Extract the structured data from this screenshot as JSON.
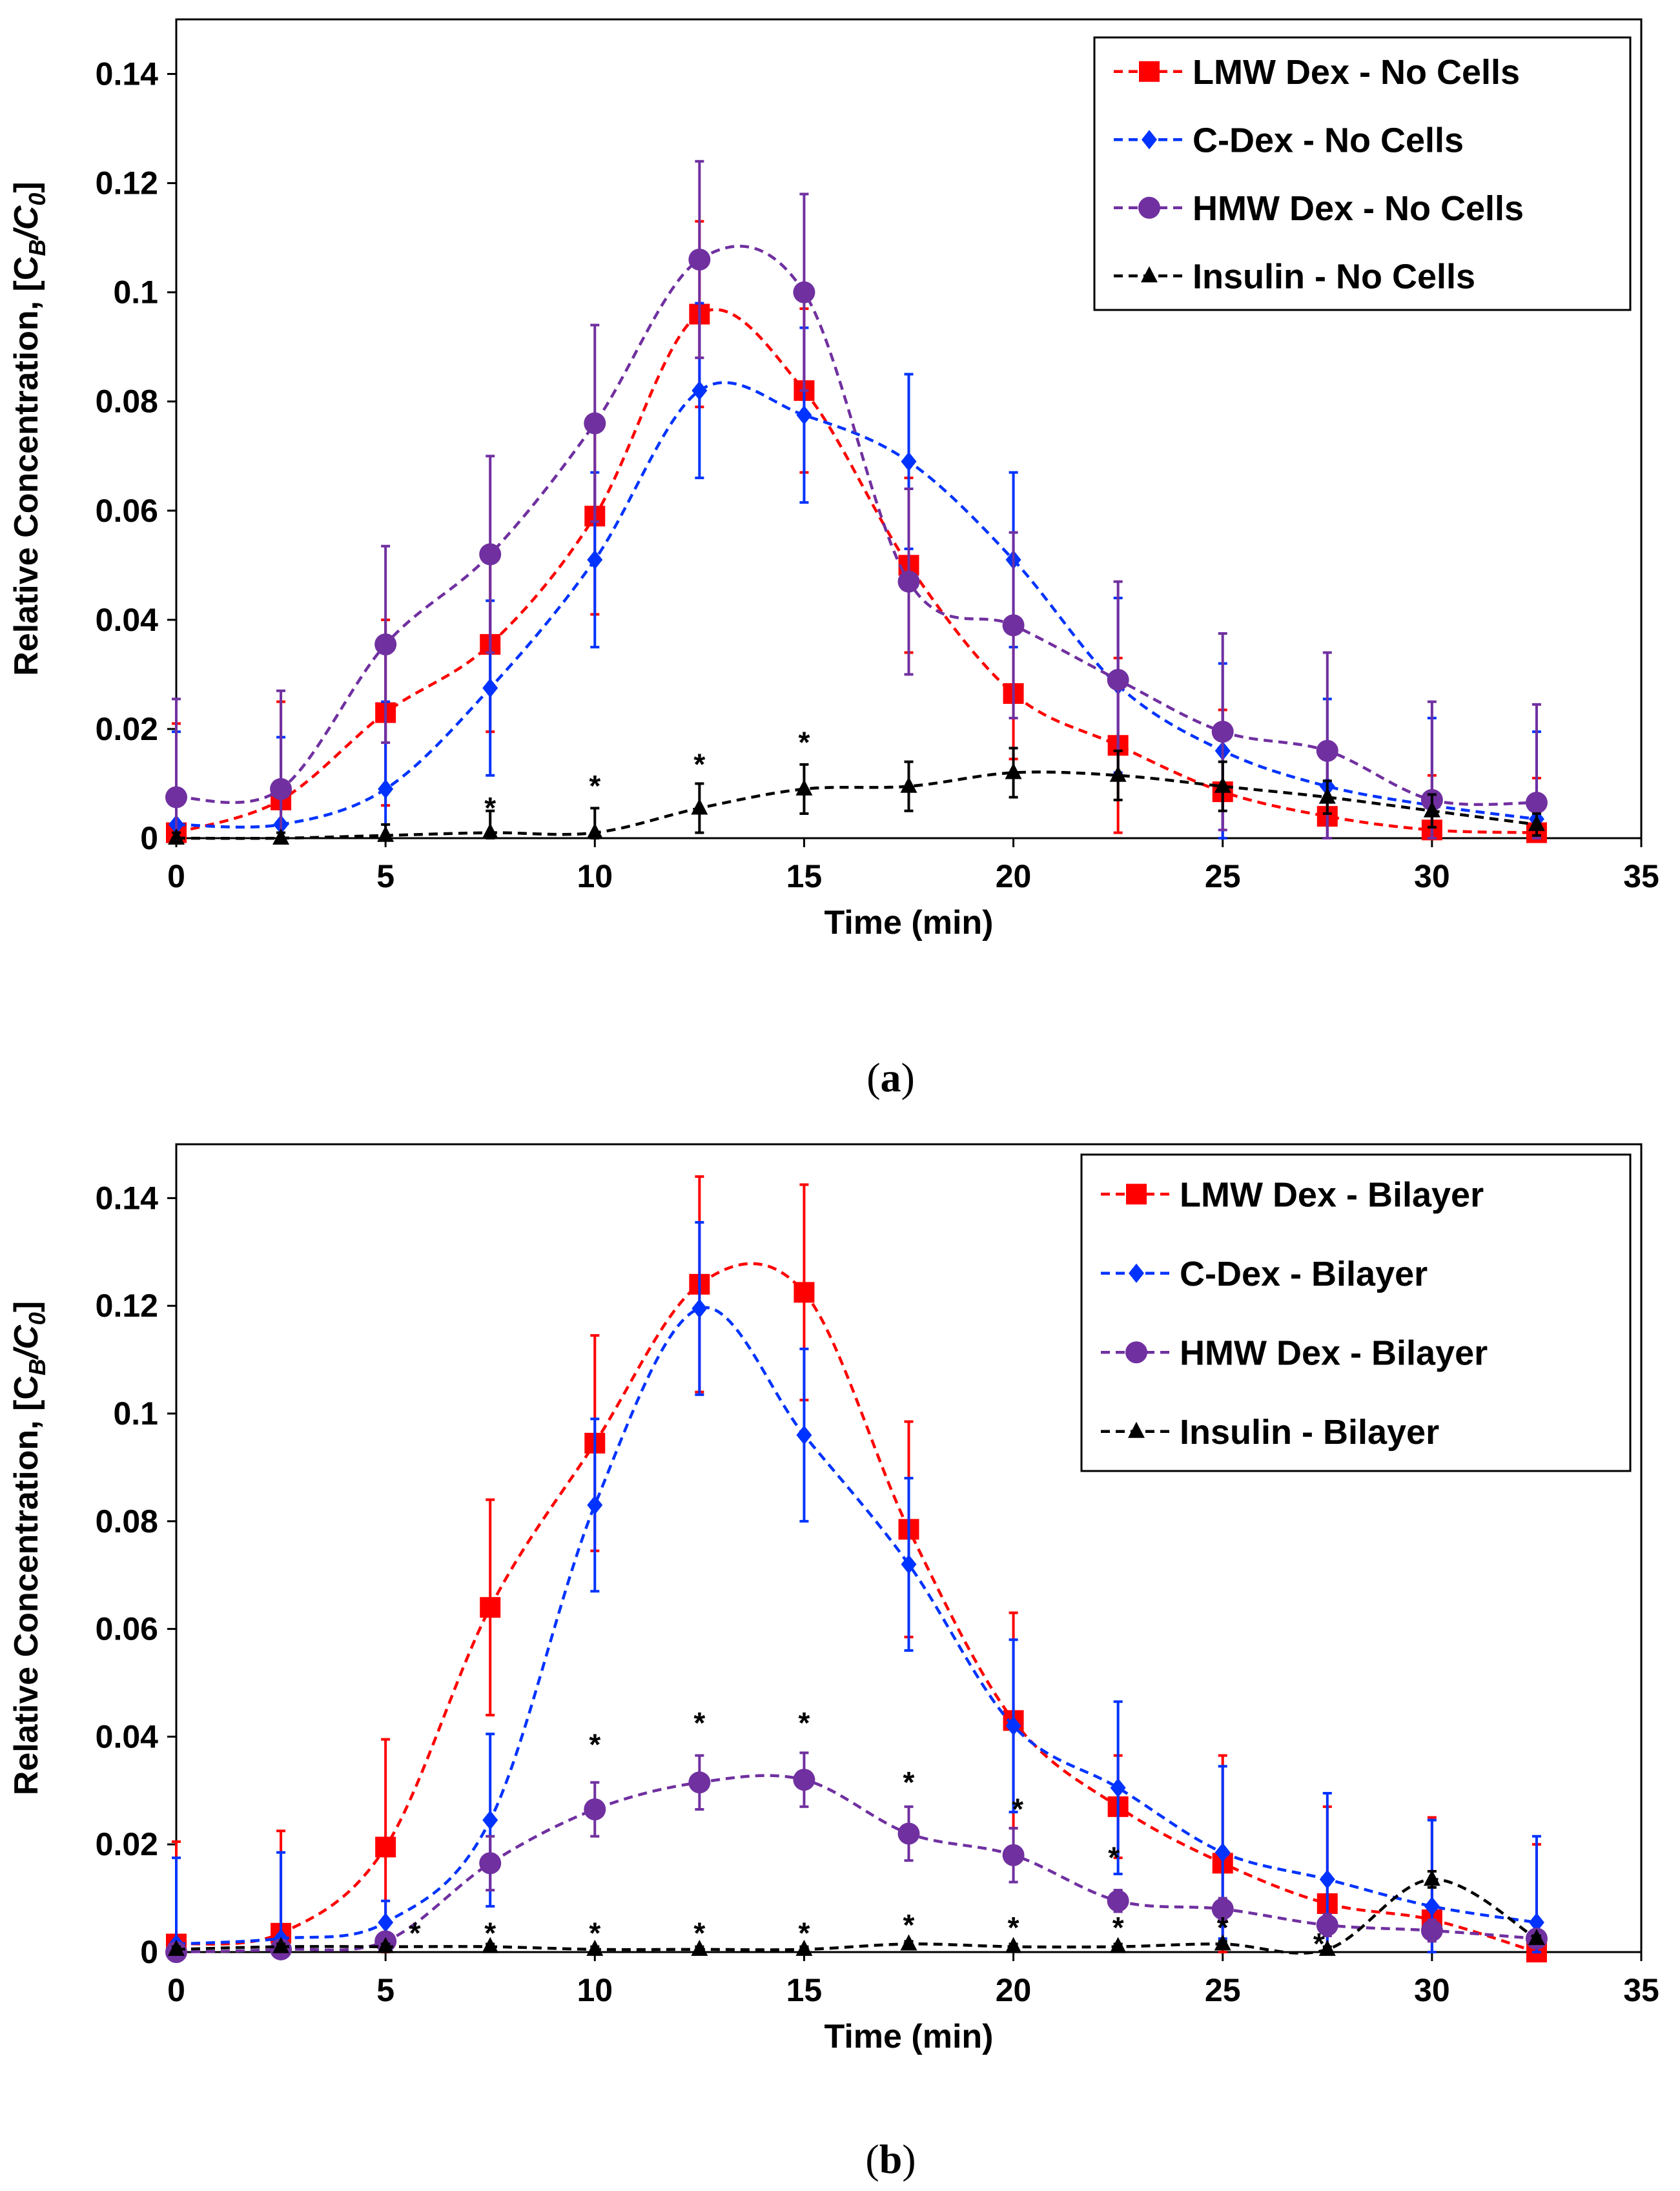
{
  "chart_data": [
    {
      "type": "line",
      "panel_caption": "(a)",
      "panel_caption_letter": "a",
      "xlabel": "Time (min)",
      "ylabel": "Relative Concentration, [C",
      "ylabel_sub_b": "B",
      "ylabel_slash": "/C",
      "ylabel_sub_0": "0",
      "ylabel_close": "]",
      "xlim": [
        0,
        35
      ],
      "ylim": [
        0,
        0.15
      ],
      "xticks": [
        "0",
        "5",
        "10",
        "15",
        "20",
        "25",
        "30",
        "35"
      ],
      "yticks": [
        "0",
        "0.02",
        "0.04",
        "0.06",
        "0.08",
        "0.1",
        "0.12",
        "0.14"
      ],
      "x": [
        0,
        2.5,
        5,
        7.5,
        10,
        12.5,
        15,
        17.5,
        20,
        22.5,
        25,
        27.5,
        30,
        32.5
      ],
      "series": [
        {
          "name": "LMW Dex - No Cells",
          "color": "#ff0000",
          "marker": "square",
          "values": [
            0.001,
            0.007,
            0.023,
            0.0355,
            0.059,
            0.096,
            0.082,
            0.05,
            0.0265,
            0.017,
            0.0085,
            0.004,
            0.0015,
            0.001
          ],
          "errors": [
            0.02,
            0.018,
            0.017,
            0.016,
            0.018,
            0.017,
            0.015,
            0.016,
            0.012,
            0.016,
            0.015,
            0.012,
            0.01,
            0.01
          ]
        },
        {
          "name": "C-Dex - No Cells",
          "color": "#0033ff",
          "marker": "diamond",
          "values": [
            0.0025,
            0.0025,
            0.009,
            0.0275,
            0.051,
            0.082,
            0.0775,
            0.069,
            0.051,
            0.028,
            0.016,
            0.0095,
            0.006,
            0.0035
          ],
          "errors": [
            0.017,
            0.016,
            0.016,
            0.016,
            0.016,
            0.016,
            0.016,
            0.016,
            0.016,
            0.016,
            0.016,
            0.016,
            0.016,
            0.016
          ]
        },
        {
          "name": "HMW Dex - No Cells",
          "color": "#7030a0",
          "marker": "circle",
          "values": [
            0.0075,
            0.009,
            0.0355,
            0.052,
            0.076,
            0.106,
            0.1,
            0.047,
            0.039,
            0.029,
            0.0195,
            0.016,
            0.007,
            0.0065
          ],
          "errors": [
            0.018,
            0.018,
            0.018,
            0.018,
            0.018,
            0.018,
            0.018,
            0.017,
            0.017,
            0.018,
            0.018,
            0.018,
            0.018,
            0.018
          ]
        },
        {
          "name": "Insulin - No Cells",
          "color": "#000000",
          "marker": "triangle",
          "values": [
            0,
            0,
            0.0005,
            0.001,
            0.001,
            0.0055,
            0.009,
            0.0095,
            0.012,
            0.0115,
            0.0095,
            0.0075,
            0.005,
            0.0025
          ],
          "errors": [
            0.001,
            0.001,
            0.002,
            0.004,
            0.0045,
            0.0045,
            0.0045,
            0.0045,
            0.0045,
            0.0045,
            0.0045,
            0.003,
            0.003,
            0.002
          ]
        }
      ],
      "annotations": [
        {
          "text": "*",
          "x": 7.5,
          "y": 0.0065
        },
        {
          "text": "*",
          "x": 10,
          "y": 0.0105
        },
        {
          "text": "*",
          "x": 12.5,
          "y": 0.0145
        },
        {
          "text": "*",
          "x": 15,
          "y": 0.0185
        }
      ],
      "legend_position": "top-right"
    },
    {
      "type": "line",
      "panel_caption": "(b)",
      "panel_caption_letter": "b",
      "xlabel": "Time (min)",
      "ylabel": "Relative Concentration, [C",
      "ylabel_sub_b": "B",
      "ylabel_slash": "/C",
      "ylabel_sub_0": "0",
      "ylabel_close": "]",
      "xlim": [
        0,
        35
      ],
      "ylim": [
        0,
        0.15
      ],
      "xticks": [
        "0",
        "5",
        "10",
        "15",
        "20",
        "25",
        "30",
        "35"
      ],
      "yticks": [
        "0",
        "0.02",
        "0.04",
        "0.06",
        "0.08",
        "0.1",
        "0.12",
        "0.14"
      ],
      "x": [
        0,
        2.5,
        5,
        7.5,
        10,
        12.5,
        15,
        17.5,
        20,
        22.5,
        25,
        27.5,
        30,
        32.5
      ],
      "series": [
        {
          "name": "LMW Dex - Bilayer",
          "color": "#ff0000",
          "marker": "square",
          "values": [
            0.0015,
            0.0035,
            0.0195,
            0.064,
            0.0945,
            0.124,
            0.1225,
            0.0785,
            0.043,
            0.027,
            0.0165,
            0.009,
            0.006,
            0
          ],
          "errors": [
            0.019,
            0.019,
            0.02,
            0.02,
            0.02,
            0.02,
            0.02,
            0.02,
            0.02,
            0.0095,
            0.02,
            0.018,
            0.019,
            0.02
          ]
        },
        {
          "name": "C-Dex - Bilayer",
          "color": "#0033ff",
          "marker": "diamond",
          "values": [
            0.0015,
            0.0025,
            0.0055,
            0.0245,
            0.083,
            0.1195,
            0.096,
            0.072,
            0.042,
            0.0305,
            0.0185,
            0.0135,
            0.0085,
            0.0055
          ],
          "errors": [
            0.016,
            0.016,
            0.004,
            0.016,
            0.016,
            0.016,
            0.016,
            0.016,
            0.016,
            0.016,
            0.016,
            0.016,
            0.016,
            0.016
          ]
        },
        {
          "name": "HMW Dex - Bilayer",
          "color": "#7030a0",
          "marker": "circle",
          "values": [
            0,
            0.0005,
            0.002,
            0.0165,
            0.0265,
            0.0315,
            0.032,
            0.022,
            0.018,
            0.0095,
            0.008,
            0.005,
            0.004,
            0.0025
          ],
          "errors": [
            0.001,
            0.001,
            0.001,
            0.005,
            0.005,
            0.005,
            0.005,
            0.005,
            0.005,
            0.002,
            0.002,
            0.002,
            0.002,
            0.001
          ]
        },
        {
          "name": "Insulin - Bilayer",
          "color": "#000000",
          "marker": "triangle",
          "values": [
            0.0005,
            0.001,
            0.001,
            0.001,
            0.0005,
            0.0005,
            0.0005,
            0.0015,
            0.001,
            0.001,
            0.0015,
            0.0005,
            0.0135,
            0.0025
          ],
          "errors": [
            0.0005,
            0.0005,
            0.0005,
            0.0005,
            0.0005,
            0.0005,
            0.0005,
            0.0005,
            0.0005,
            0.0005,
            0.0005,
            0.0005,
            0.0015,
            0.0005
          ]
        }
      ],
      "annotations": [
        {
          "text": "*",
          "x": 5.7,
          "y": 0.0045
        },
        {
          "text": "*",
          "x": 7.5,
          "y": 0.0045
        },
        {
          "text": "*",
          "x": 10,
          "y": 0.0045
        },
        {
          "text": "*",
          "x": 12.5,
          "y": 0.0045
        },
        {
          "text": "*",
          "x": 15,
          "y": 0.0045
        },
        {
          "text": "*",
          "x": 17.5,
          "y": 0.006
        },
        {
          "text": "*",
          "x": 20,
          "y": 0.0055
        },
        {
          "text": "*",
          "x": 22.5,
          "y": 0.0055
        },
        {
          "text": "*",
          "x": 25,
          "y": 0.0055
        },
        {
          "text": "*",
          "x": 27.3,
          "y": 0.0025
        },
        {
          "text": "*",
          "x": 10,
          "y": 0.0395
        },
        {
          "text": "*",
          "x": 12.5,
          "y": 0.0435
        },
        {
          "text": "*",
          "x": 15,
          "y": 0.0435
        },
        {
          "text": "*",
          "x": 17.5,
          "y": 0.0325
        },
        {
          "text": "*",
          "x": 20.1,
          "y": 0.0275
        },
        {
          "text": "*",
          "x": 22.4,
          "y": 0.0185
        }
      ],
      "legend_position": "top-right"
    }
  ]
}
